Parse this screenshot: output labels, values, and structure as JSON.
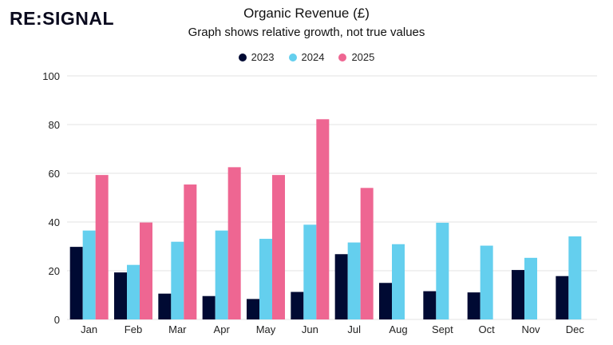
{
  "brand": {
    "logo_text": "RE:SIGNAL"
  },
  "chart_data": {
    "type": "bar",
    "title": "Organic Revenue (£)",
    "subtitle": "Graph shows relative growth, not true values",
    "xlabel": "",
    "ylabel": "",
    "ylim": [
      0,
      100
    ],
    "yticks": [
      0,
      20,
      40,
      60,
      80,
      100
    ],
    "grid": true,
    "legend_position": "top-center",
    "categories": [
      "Jan",
      "Feb",
      "Mar",
      "Apr",
      "May",
      "Jun",
      "Jul",
      "Aug",
      "Sept",
      "Oct",
      "Nov",
      "Dec"
    ],
    "series": [
      {
        "name": "2023",
        "color": "#000a33",
        "values": [
          29.8,
          19.3,
          10.6,
          9.6,
          8.4,
          11.3,
          26.8,
          15.0,
          11.6,
          11.1,
          20.3,
          17.8
        ]
      },
      {
        "name": "2024",
        "color": "#64cfee",
        "values": [
          36.5,
          22.4,
          31.9,
          36.5,
          33.1,
          38.9,
          31.6,
          30.9,
          39.7,
          30.3,
          25.3,
          34.1
        ]
      },
      {
        "name": "2025",
        "color": "#ee6692",
        "values": [
          59.3,
          39.8,
          55.4,
          62.5,
          59.3,
          82.2,
          54.0,
          null,
          null,
          null,
          null,
          null
        ]
      }
    ]
  }
}
